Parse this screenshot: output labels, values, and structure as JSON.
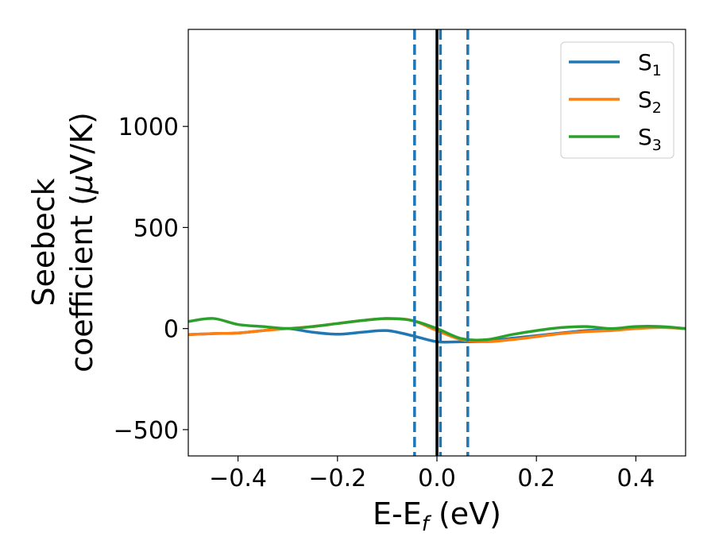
{
  "chart_data": {
    "type": "line",
    "title": "",
    "xlabel": {
      "main": "E-E",
      "sub": "f",
      "unit": " (eV)"
    },
    "ylabel": {
      "line1": "Seebeck",
      "line2": "coefficient  (",
      "mu": "μ",
      "unit": "V/K)"
    },
    "xlim": [
      -0.5,
      0.5
    ],
    "ylim": [
      -630,
      1480
    ],
    "xticks": [
      -0.4,
      -0.2,
      0.0,
      0.2,
      0.4
    ],
    "xtick_labels": [
      "−0.4",
      "−0.2",
      "0.0",
      "0.2",
      "0.4"
    ],
    "yticks": [
      -500,
      0,
      500,
      1000
    ],
    "ytick_labels": [
      "−500",
      "0",
      "500",
      "1000"
    ],
    "grid": false,
    "legend_position": "top-right",
    "vertical_lines": [
      {
        "x": -0.045,
        "style": "dashed",
        "color": "#1f77b4"
      },
      {
        "x": 0.0,
        "style": "solid",
        "color": "#000000"
      },
      {
        "x": 0.007,
        "style": "dashed",
        "color": "#1f77b4"
      },
      {
        "x": 0.062,
        "style": "dashed",
        "color": "#1f77b4"
      }
    ],
    "series": [
      {
        "name": "S",
        "sub": "1",
        "color": "#1f77b4",
        "x": [
          -0.5,
          -0.45,
          -0.4,
          -0.35,
          -0.3,
          -0.25,
          -0.2,
          -0.15,
          -0.1,
          -0.05,
          0.0,
          0.05,
          0.1,
          0.15,
          0.2,
          0.25,
          0.3,
          0.35,
          0.4,
          0.45,
          0.5
        ],
        "y": [
          -30,
          -25,
          -22,
          -10,
          0,
          -18,
          -28,
          -18,
          -10,
          -35,
          -65,
          -65,
          -63,
          -48,
          -35,
          -22,
          -10,
          -5,
          5,
          8,
          0
        ]
      },
      {
        "name": "S",
        "sub": "2",
        "color": "#ff7f0e",
        "x": [
          -0.5,
          -0.45,
          -0.4,
          -0.35,
          -0.3,
          -0.25,
          -0.2,
          -0.15,
          -0.1,
          -0.05,
          0.0,
          0.05,
          0.1,
          0.15,
          0.2,
          0.25,
          0.3,
          0.35,
          0.4,
          0.45,
          0.5
        ],
        "y": [
          -30,
          -25,
          -22,
          -10,
          0,
          10,
          25,
          40,
          50,
          40,
          -10,
          -55,
          -65,
          -55,
          -40,
          -25,
          -15,
          -10,
          0,
          5,
          0
        ]
      },
      {
        "name": "S",
        "sub": "3",
        "color": "#2ca02c",
        "x": [
          -0.5,
          -0.45,
          -0.4,
          -0.35,
          -0.3,
          -0.25,
          -0.2,
          -0.15,
          -0.1,
          -0.05,
          0.0,
          0.05,
          0.1,
          0.15,
          0.2,
          0.25,
          0.3,
          0.35,
          0.4,
          0.45,
          0.5
        ],
        "y": [
          35,
          50,
          20,
          10,
          0,
          10,
          25,
          40,
          50,
          40,
          0,
          -50,
          -55,
          -30,
          -10,
          5,
          10,
          0,
          10,
          10,
          0
        ]
      }
    ]
  }
}
